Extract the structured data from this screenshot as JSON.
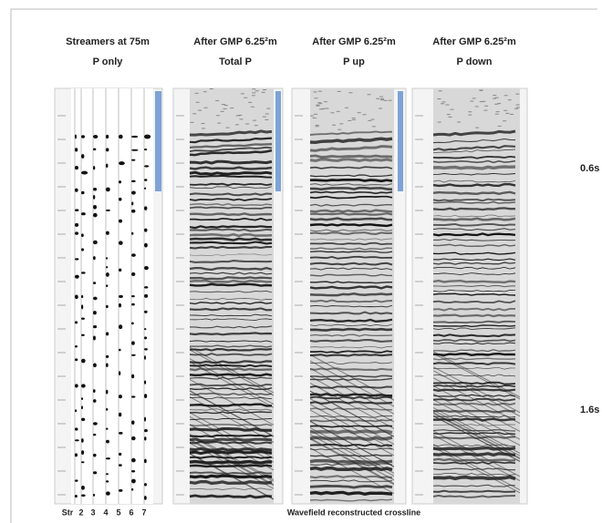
{
  "panels": [
    {
      "title": [
        "Streamers at 75m",
        "P only"
      ]
    },
    {
      "title": [
        "After GMP 6.25²m",
        "Total P"
      ]
    },
    {
      "title": [
        "After GMP 6.25²m",
        "P up"
      ]
    },
    {
      "title": [
        "After GMP 6.25²m",
        "P down"
      ]
    }
  ],
  "time_labels": [
    "0.6s",
    "1.6s"
  ],
  "streamer_axis": {
    "label": "Str",
    "ticks": [
      "2",
      "3",
      "4",
      "5",
      "6",
      "7"
    ]
  },
  "caption": "Wavefield reconstructed crossline"
}
